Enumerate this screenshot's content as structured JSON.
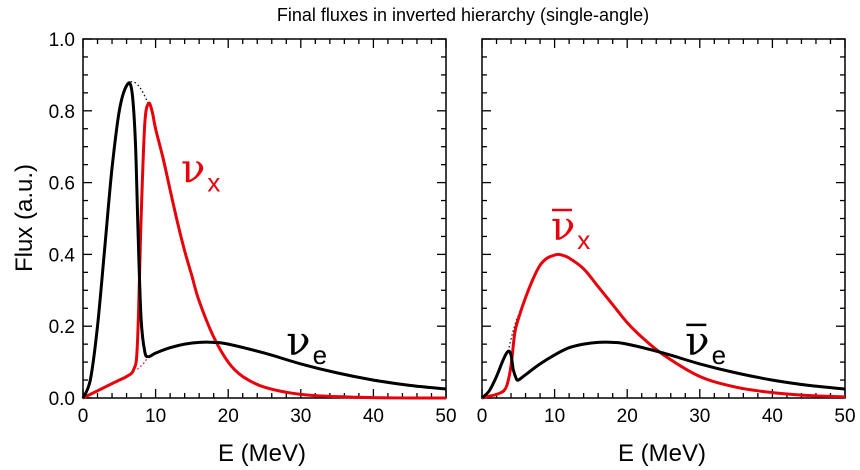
{
  "chart_data": [
    {
      "type": "line",
      "panel": "left",
      "title": "Final fluxes in inverted hierarchy (single-angle)",
      "xlabel": "E (MeV)",
      "ylabel": "Flux (a.u.)",
      "xlim": [
        0,
        50
      ],
      "ylim": [
        0,
        1.0
      ],
      "xticks": [
        "0",
        "10",
        "20",
        "30",
        "40",
        "50"
      ],
      "yticks": [
        "0.0",
        "0.2",
        "0.4",
        "0.6",
        "0.8",
        "1.0"
      ],
      "grid": false,
      "series": [
        {
          "name": "ν_e",
          "color": "#000000",
          "x": [
            0,
            1,
            2,
            3,
            4,
            5,
            6,
            6.7,
            7.2,
            7.6,
            8.0,
            8.5,
            9,
            10,
            12,
            14,
            16,
            18,
            20,
            25,
            30,
            35,
            40,
            45,
            50
          ],
          "y": [
            0.0,
            0.05,
            0.2,
            0.42,
            0.64,
            0.8,
            0.87,
            0.86,
            0.72,
            0.45,
            0.22,
            0.13,
            0.115,
            0.125,
            0.14,
            0.15,
            0.155,
            0.155,
            0.15,
            0.125,
            0.095,
            0.07,
            0.05,
            0.035,
            0.025
          ]
        },
        {
          "name": "ν_x",
          "color": "#e8000b",
          "x": [
            0,
            1,
            2,
            3,
            4,
            5,
            6,
            7,
            7.5,
            8,
            8.5,
            9,
            9.5,
            10,
            11,
            12,
            13,
            14,
            15,
            16,
            18,
            20,
            22,
            25,
            30,
            35,
            40,
            45,
            50
          ],
          "y": [
            0.0,
            0.01,
            0.02,
            0.03,
            0.04,
            0.05,
            0.06,
            0.08,
            0.15,
            0.5,
            0.76,
            0.82,
            0.8,
            0.75,
            0.67,
            0.58,
            0.49,
            0.41,
            0.34,
            0.27,
            0.17,
            0.1,
            0.06,
            0.03,
            0.01,
            0.004,
            0.001,
            0.0,
            0.0
          ]
        }
      ],
      "dotted_envelope": {
        "x": [
          5,
          6,
          7,
          8,
          9
        ],
        "y": [
          0.8,
          0.87,
          0.88,
          0.86,
          0.82
        ]
      },
      "dotted_red_segment": {
        "x": [
          7.5,
          8.5,
          9
        ],
        "y": [
          0.08,
          0.1,
          0.12
        ]
      },
      "labels": [
        {
          "text": "ν",
          "sub": "x",
          "color": "#e8000b",
          "overbar": false,
          "x": 13.5,
          "y": 0.6
        },
        {
          "text": "ν",
          "sub": "e",
          "color": "#000000",
          "overbar": false,
          "x": 28,
          "y": 0.12
        }
      ]
    },
    {
      "type": "line",
      "panel": "right",
      "xlabel": "E (MeV)",
      "xlim": [
        0,
        50
      ],
      "ylim": [
        0,
        1.0
      ],
      "xticks": [
        "0",
        "10",
        "20",
        "30",
        "40",
        "50"
      ],
      "grid": false,
      "series": [
        {
          "name": "ν̄_e",
          "color": "#000000",
          "x": [
            0,
            1,
            2,
            3,
            3.6,
            4.0,
            4.3,
            4.7,
            5.0,
            6,
            8,
            10,
            12,
            14,
            16,
            18,
            20,
            25,
            30,
            35,
            40,
            45,
            50
          ],
          "y": [
            0.0,
            0.02,
            0.06,
            0.11,
            0.13,
            0.12,
            0.08,
            0.055,
            0.05,
            0.065,
            0.095,
            0.12,
            0.14,
            0.15,
            0.155,
            0.155,
            0.15,
            0.125,
            0.095,
            0.07,
            0.05,
            0.035,
            0.025
          ]
        },
        {
          "name": "ν̄_x",
          "color": "#e8000b",
          "x": [
            0,
            1,
            2,
            3,
            3.5,
            4.0,
            4.5,
            5,
            6,
            7,
            8,
            9,
            10,
            10.5,
            11,
            12,
            14,
            16,
            18,
            20,
            22,
            25,
            30,
            35,
            40,
            45,
            50
          ],
          "y": [
            0.0,
            0.005,
            0.01,
            0.02,
            0.04,
            0.09,
            0.18,
            0.22,
            0.28,
            0.33,
            0.37,
            0.39,
            0.398,
            0.4,
            0.398,
            0.39,
            0.36,
            0.31,
            0.26,
            0.21,
            0.17,
            0.12,
            0.06,
            0.03,
            0.015,
            0.007,
            0.003
          ]
        }
      ],
      "dotted_envelope": {
        "x": [
          3.6,
          4.2,
          4.8,
          5.5
        ],
        "y": [
          0.13,
          0.18,
          0.22,
          0.25
        ]
      },
      "labels": [
        {
          "text": "ν",
          "sub": "x",
          "color": "#e8000b",
          "overbar": true,
          "x": 9.5,
          "y": 0.44
        },
        {
          "text": "ν",
          "sub": "e",
          "color": "#000000",
          "overbar": true,
          "x": 28,
          "y": 0.12
        }
      ]
    }
  ]
}
